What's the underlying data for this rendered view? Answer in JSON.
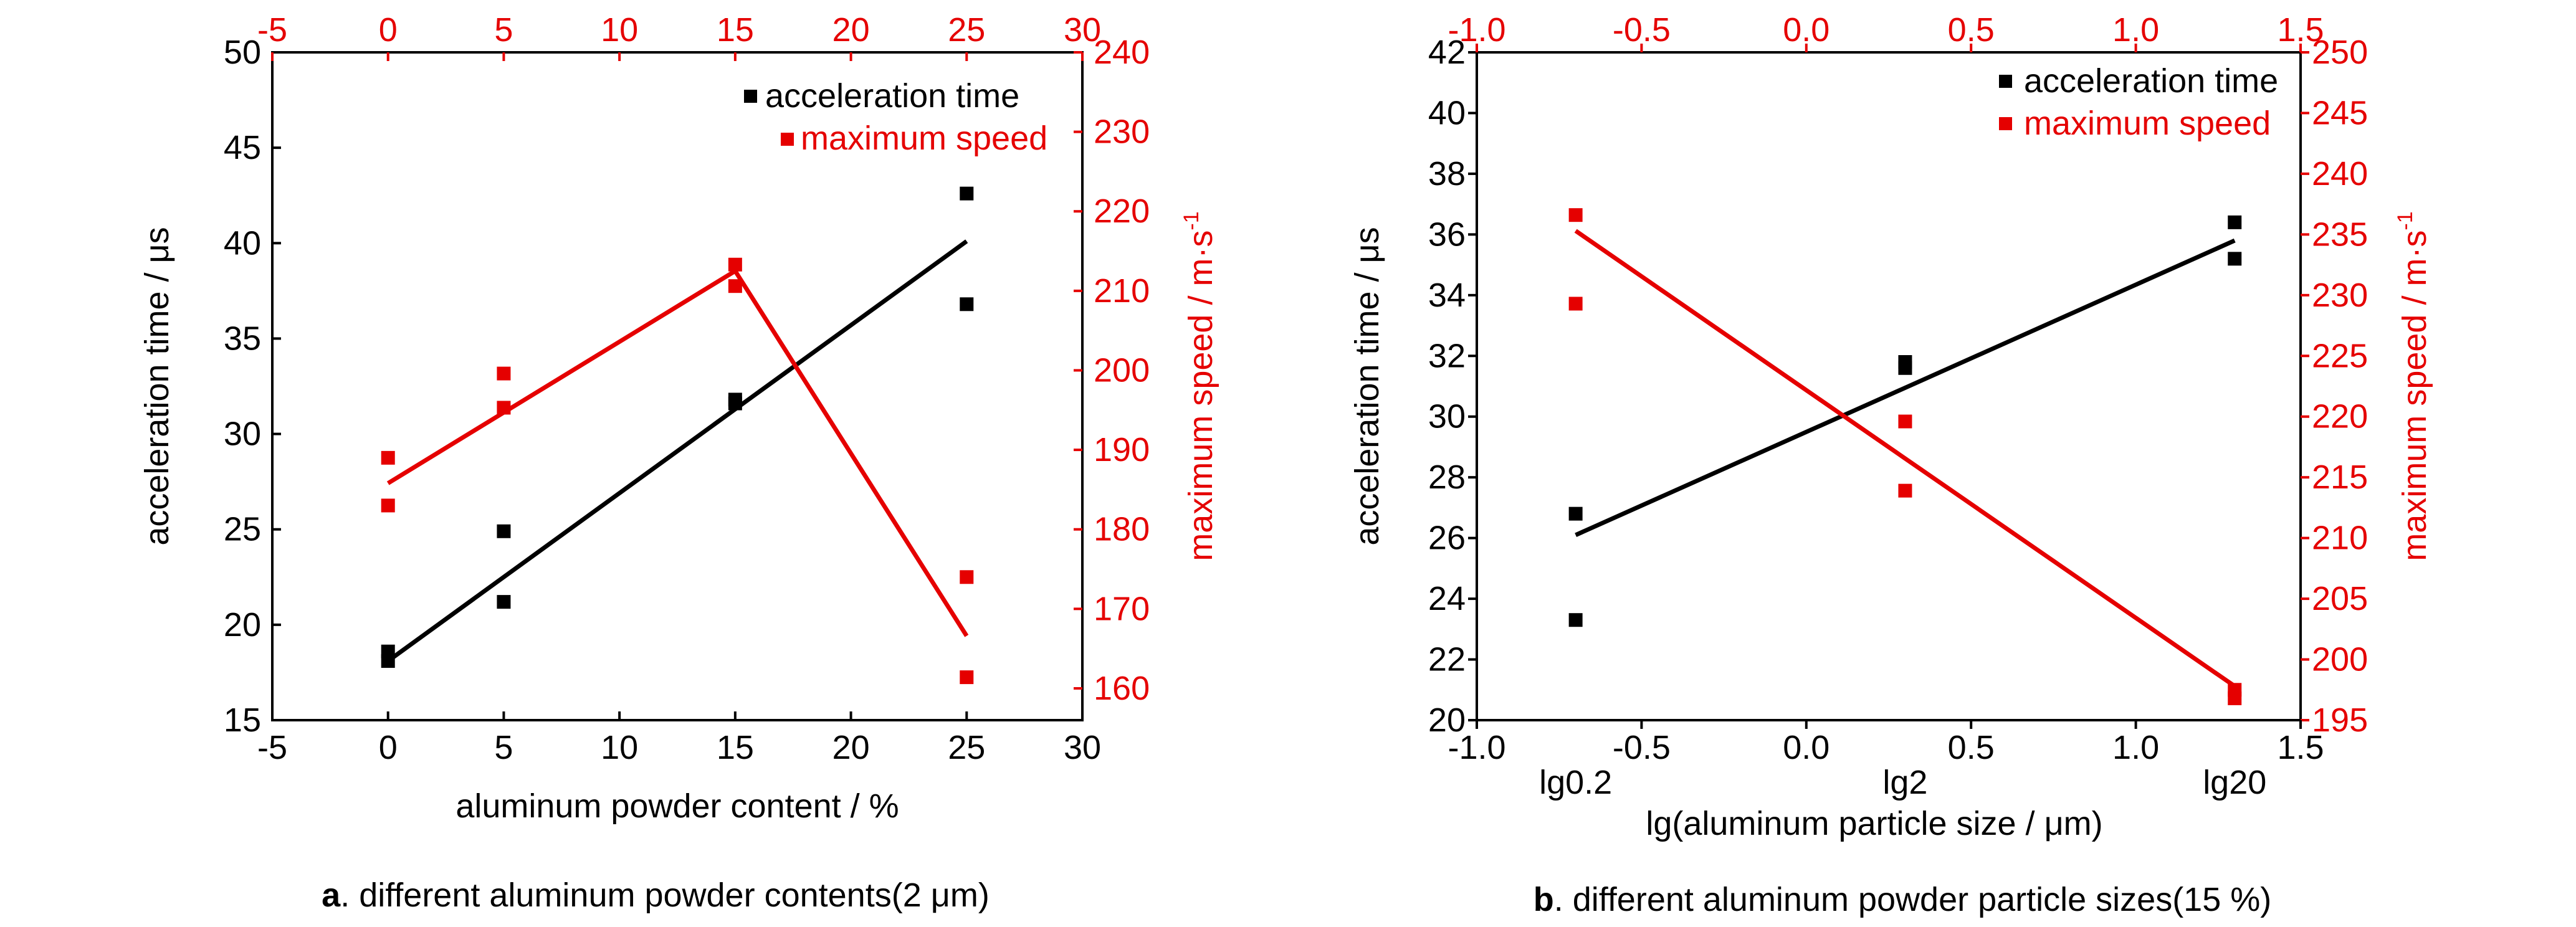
{
  "colors": {
    "acceleration": "#000000",
    "speed": "#e50000",
    "axis": "#000000"
  },
  "chart_data": [
    {
      "type": "scatter",
      "panel": "a",
      "caption_prefix": "a",
      "caption_text": ". different aluminum powder contents(2 μm)",
      "xlabel": "aluminum powder content / %",
      "ylabel": "acceleration time / μs",
      "y2label": "maximum speed / m·s",
      "y2label_sup": "-1",
      "xlim": [
        -5,
        30
      ],
      "ylim": [
        15,
        50
      ],
      "y2lim": [
        156,
        240
      ],
      "x_ticks": [
        "-5",
        "0",
        "5",
        "10",
        "15",
        "20",
        "25",
        "30"
      ],
      "top_ticks": [
        "-5",
        "0",
        "5",
        "10",
        "15",
        "20",
        "25",
        "30"
      ],
      "y_ticks": [
        "15",
        "20",
        "25",
        "30",
        "35",
        "40",
        "45",
        "50"
      ],
      "y2_ticks": [
        "160",
        "170",
        "180",
        "190",
        "200",
        "210",
        "220",
        "230",
        "240"
      ],
      "grid": false,
      "legend": {
        "position": "top-right",
        "entries": [
          "acceleration time",
          "maximum speed"
        ]
      },
      "series": [
        {
          "name": "acceleration time",
          "axis": "left",
          "points": [
            [
              0,
              18.6
            ],
            [
              0,
              18.1
            ],
            [
              5,
              24.9
            ],
            [
              5,
              21.2
            ],
            [
              15,
              31.8
            ],
            [
              15,
              31.6
            ],
            [
              25,
              42.6
            ],
            [
              25,
              36.8
            ]
          ],
          "fit": [
            [
              0,
              18.1
            ],
            [
              25,
              40.1
            ]
          ]
        },
        {
          "name": "maximum speed",
          "axis": "right",
          "points": [
            [
              0,
              189
            ],
            [
              0,
              183
            ],
            [
              5,
              199.6
            ],
            [
              5,
              195.3
            ],
            [
              15,
              213.3
            ],
            [
              15,
              210.6
            ],
            [
              25,
              174
            ],
            [
              25,
              161.4
            ]
          ],
          "fit": [
            [
              0,
              185.8
            ],
            [
              15,
              212.5
            ],
            [
              25,
              166.6
            ]
          ]
        }
      ]
    },
    {
      "type": "scatter",
      "panel": "b",
      "caption_prefix": "b",
      "caption_text": ". different aluminum powder particle sizes(15 %)",
      "xlabel": "lg(aluminum particle size / μm)",
      "ylabel": "acceleration time / μs",
      "y2label": "maximum speed / m·s",
      "y2label_sup": "-1",
      "xlim": [
        -1.0,
        1.5
      ],
      "ylim": [
        20,
        42
      ],
      "y2lim": [
        195,
        250
      ],
      "x_ticks": [
        "-1.0",
        "-0.5",
        "0.0",
        "0.5",
        "1.0",
        "1.5"
      ],
      "x_cat_labels": [
        {
          "x": -0.7,
          "text": "lg0.2"
        },
        {
          "x": 0.3,
          "text": "lg2"
        },
        {
          "x": 1.3,
          "text": "lg20"
        }
      ],
      "top_ticks": [
        "-1.0",
        "-0.5",
        "0.0",
        "0.5",
        "1.0",
        "1.5"
      ],
      "y_ticks": [
        "20",
        "22",
        "24",
        "26",
        "28",
        "30",
        "32",
        "34",
        "36",
        "38",
        "40",
        "42"
      ],
      "y2_ticks": [
        "195",
        "200",
        "205",
        "210",
        "215",
        "220",
        "225",
        "230",
        "235",
        "240",
        "245",
        "250"
      ],
      "grid": false,
      "legend": {
        "position": "top-right",
        "entries": [
          "acceleration time",
          "maximum speed"
        ]
      },
      "series": [
        {
          "name": "acceleration time",
          "axis": "left",
          "points": [
            [
              -0.7,
              26.8
            ],
            [
              -0.7,
              23.3
            ],
            [
              0.3,
              31.8
            ],
            [
              0.3,
              31.6
            ],
            [
              1.3,
              36.4
            ],
            [
              1.3,
              35.2
            ]
          ],
          "fit": [
            [
              -0.7,
              26.1
            ],
            [
              1.3,
              35.8
            ]
          ]
        },
        {
          "name": "maximum speed",
          "axis": "right",
          "points": [
            [
              -0.7,
              236.6
            ],
            [
              -0.7,
              229.3
            ],
            [
              0.3,
              219.6
            ],
            [
              0.3,
              213.9
            ],
            [
              1.3,
              197.5
            ],
            [
              1.3,
              196.8
            ]
          ],
          "fit": [
            [
              -0.7,
              235.3
            ],
            [
              1.3,
              197.8
            ]
          ]
        }
      ]
    }
  ]
}
